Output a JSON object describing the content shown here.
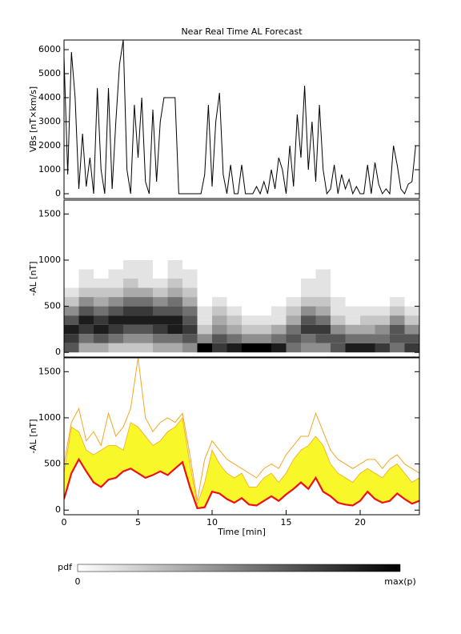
{
  "chart_data": [
    {
      "type": "line",
      "title": "Near Real Time AL Forecast",
      "ylabel": "VBs [nT×km/s]",
      "xlim": [
        0,
        24
      ],
      "ylim": [
        -200,
        6400
      ],
      "yticks": [
        0,
        1000,
        2000,
        3000,
        4000,
        5000,
        6000
      ],
      "x": [
        0,
        0.25,
        0.5,
        0.75,
        1,
        1.25,
        1.5,
        1.75,
        2,
        2.25,
        2.5,
        2.75,
        3,
        3.25,
        3.5,
        3.75,
        4,
        4.25,
        4.5,
        4.75,
        5,
        5.25,
        5.5,
        5.75,
        6,
        6.25,
        6.5,
        6.75,
        7,
        7.25,
        7.5,
        7.75,
        8,
        8.25,
        8.5,
        8.75,
        9,
        9.25,
        9.5,
        9.75,
        10,
        10.25,
        10.5,
        10.75,
        11,
        11.25,
        11.5,
        11.75,
        12,
        12.25,
        12.5,
        12.75,
        13,
        13.25,
        13.5,
        13.75,
        14,
        14.25,
        14.5,
        14.75,
        15,
        15.25,
        15.5,
        15.75,
        16,
        16.25,
        16.5,
        16.75,
        17,
        17.25,
        17.5,
        17.75,
        18,
        18.25,
        18.5,
        18.75,
        19,
        19.25,
        19.5,
        19.75,
        20,
        20.25,
        20.5,
        20.75,
        21,
        21.25,
        21.5,
        21.75,
        22,
        22.25,
        22.5,
        22.75,
        23,
        23.25,
        23.5,
        23.75,
        24
      ],
      "series": [
        {
          "color": "#000000",
          "values": [
            5700,
            800,
            5900,
            4000,
            200,
            2500,
            300,
            1500,
            0,
            4400,
            1000,
            0,
            4400,
            200,
            3000,
            5400,
            6400,
            1000,
            0,
            3700,
            1500,
            4000,
            500,
            0,
            3500,
            500,
            3000,
            4000,
            4000,
            4000,
            4000,
            0,
            0,
            0,
            0,
            0,
            0,
            0,
            800,
            3700,
            300,
            3000,
            4200,
            800,
            0,
            1200,
            0,
            0,
            1200,
            0,
            0,
            0,
            300,
            0,
            500,
            0,
            1000,
            200,
            1500,
            1000,
            0,
            2000,
            300,
            3300,
            1500,
            4500,
            1000,
            3000,
            500,
            3700,
            1000,
            0,
            200,
            1200,
            0,
            800,
            200,
            600,
            0,
            300,
            0,
            0,
            1200,
            0,
            1300,
            400,
            0,
            200,
            0,
            2000,
            1200,
            200,
            0,
            400,
            500,
            2000,
            2000
          ]
        }
      ]
    },
    {
      "type": "heatmap",
      "ylabel": "-AL [nT]",
      "xlim": [
        0,
        24
      ],
      "ylim": [
        -50,
        1650
      ],
      "yticks": [
        0,
        500,
        1000,
        1500
      ],
      "xbins": [
        0,
        1,
        2,
        3,
        4,
        5,
        6,
        7,
        8,
        9,
        10,
        11,
        12,
        13,
        14,
        15,
        16,
        17,
        18,
        19,
        20,
        21,
        22,
        23,
        24
      ],
      "ybins": [
        0,
        100,
        200,
        300,
        400,
        500,
        600,
        700,
        800,
        900,
        1000,
        1100,
        1200
      ],
      "z": [
        [
          6,
          7,
          8,
          6,
          4,
          2,
          1,
          0,
          0,
          0,
          0,
          0
        ],
        [
          3,
          5,
          7,
          8,
          6,
          4,
          2,
          1,
          1,
          0,
          0,
          0
        ],
        [
          3,
          6,
          8,
          7,
          5,
          3,
          2,
          1,
          0,
          0,
          0,
          0
        ],
        [
          2,
          5,
          7,
          8,
          6,
          4,
          2,
          1,
          1,
          0,
          0,
          0
        ],
        [
          2,
          4,
          6,
          8,
          7,
          5,
          3,
          2,
          1,
          1,
          0,
          0
        ],
        [
          2,
          4,
          6,
          8,
          7,
          5,
          3,
          1,
          1,
          1,
          0,
          0
        ],
        [
          3,
          5,
          7,
          8,
          6,
          4,
          2,
          1,
          0,
          0,
          0,
          0
        ],
        [
          3,
          5,
          8,
          8,
          6,
          5,
          3,
          2,
          1,
          1,
          0,
          0
        ],
        [
          4,
          6,
          7,
          6,
          5,
          3,
          2,
          1,
          1,
          0,
          0,
          0
        ],
        [
          9,
          4,
          2,
          1,
          1,
          0,
          0,
          0,
          0,
          0,
          0,
          0
        ],
        [
          7,
          6,
          4,
          3,
          2,
          1,
          0,
          0,
          0,
          0,
          0,
          0
        ],
        [
          8,
          5,
          3,
          2,
          1,
          0,
          0,
          0,
          0,
          0,
          0,
          0
        ],
        [
          9,
          4,
          2,
          1,
          0,
          0,
          0,
          0,
          0,
          0,
          0,
          0
        ],
        [
          9,
          4,
          2,
          1,
          0,
          0,
          0,
          0,
          0,
          0,
          0,
          0
        ],
        [
          8,
          5,
          3,
          1,
          1,
          0,
          0,
          0,
          0,
          0,
          0,
          0
        ],
        [
          5,
          6,
          5,
          3,
          2,
          1,
          0,
          0,
          0,
          0,
          0,
          0
        ],
        [
          4,
          5,
          7,
          6,
          4,
          2,
          1,
          1,
          0,
          0,
          0,
          0
        ],
        [
          4,
          6,
          7,
          5,
          3,
          2,
          1,
          1,
          1,
          0,
          0,
          0
        ],
        [
          6,
          6,
          4,
          2,
          1,
          1,
          0,
          0,
          0,
          0,
          0,
          0
        ],
        [
          8,
          5,
          3,
          1,
          1,
          0,
          0,
          0,
          0,
          0,
          0,
          0
        ],
        [
          8,
          5,
          3,
          2,
          1,
          0,
          0,
          0,
          0,
          0,
          0,
          0
        ],
        [
          7,
          5,
          4,
          2,
          1,
          0,
          0,
          0,
          0,
          0,
          0,
          0
        ],
        [
          5,
          6,
          6,
          4,
          2,
          1,
          0,
          0,
          0,
          0,
          0,
          0
        ],
        [
          7,
          6,
          4,
          2,
          1,
          0,
          0,
          0,
          0,
          0,
          0,
          0
        ]
      ],
      "colorbar": {
        "label": "pdf",
        "min_label": "0",
        "max_label": "max(p)"
      }
    },
    {
      "type": "line",
      "ylabel": "-AL [nT]",
      "xlabel": "Time [min]",
      "xlim": [
        0,
        24
      ],
      "xticks": [
        0,
        5,
        10,
        15,
        20
      ],
      "ylim": [
        -50,
        1650
      ],
      "yticks": [
        0,
        500,
        1000,
        1500
      ],
      "x": [
        0,
        0.5,
        1,
        1.5,
        2,
        2.5,
        3,
        3.5,
        4,
        4.5,
        5,
        5.5,
        6,
        6.5,
        7,
        7.5,
        8,
        8.5,
        9,
        9.5,
        10,
        10.5,
        11,
        11.5,
        12,
        12.5,
        13,
        13.5,
        14,
        14.5,
        15,
        15.5,
        16,
        16.5,
        17,
        17.5,
        18,
        18.5,
        19,
        19.5,
        20,
        20.5,
        21,
        21.5,
        22,
        22.5,
        23,
        23.5,
        24
      ],
      "fill": {
        "color": "#f7f72a",
        "upper": [
          400,
          900,
          850,
          650,
          600,
          650,
          700,
          700,
          650,
          950,
          900,
          800,
          700,
          750,
          850,
          900,
          1000,
          500,
          60,
          300,
          650,
          500,
          400,
          350,
          400,
          250,
          250,
          350,
          400,
          300,
          400,
          550,
          650,
          700,
          800,
          700,
          500,
          400,
          350,
          300,
          400,
          450,
          400,
          350,
          450,
          500,
          400,
          300,
          350
        ]
      },
      "series": [
        {
          "color": "#f5a623",
          "values": [
            500,
            950,
            1100,
            750,
            850,
            700,
            1050,
            800,
            900,
            1100,
            1650,
            1000,
            850,
            950,
            1000,
            950,
            1050,
            600,
            100,
            550,
            750,
            650,
            550,
            500,
            450,
            400,
            350,
            450,
            500,
            450,
            600,
            700,
            800,
            800,
            1050,
            850,
            650,
            550,
            500,
            450,
            500,
            550,
            550,
            450,
            550,
            600,
            500,
            450,
            400
          ]
        },
        {
          "color": "#ee1111",
          "values": [
            120,
            400,
            550,
            420,
            300,
            250,
            330,
            350,
            420,
            450,
            400,
            350,
            380,
            420,
            380,
            450,
            520,
            250,
            20,
            30,
            200,
            180,
            120,
            80,
            130,
            60,
            50,
            100,
            150,
            100,
            170,
            230,
            300,
            230,
            350,
            200,
            150,
            80,
            60,
            50,
            100,
            200,
            120,
            80,
            100,
            180,
            120,
            70,
            100
          ]
        }
      ]
    }
  ]
}
